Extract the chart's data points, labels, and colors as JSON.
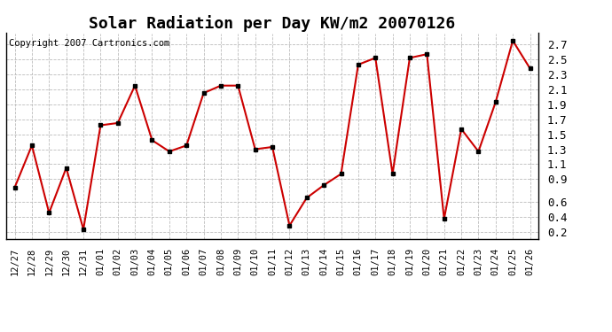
{
  "title": "Solar Radiation per Day KW/m2 20070126",
  "copyright": "Copyright 2007 Cartronics.com",
  "dates": [
    "12/27",
    "12/28",
    "12/29",
    "12/30",
    "12/31",
    "01/01",
    "01/02",
    "01/03",
    "01/04",
    "01/05",
    "01/06",
    "01/07",
    "01/08",
    "01/09",
    "01/10",
    "01/11",
    "01/12",
    "01/13",
    "01/14",
    "01/15",
    "01/16",
    "01/17",
    "01/18",
    "01/19",
    "01/20",
    "01/21",
    "01/22",
    "01/23",
    "01/24",
    "01/25",
    "01/26"
  ],
  "values": [
    0.79,
    1.35,
    0.45,
    1.05,
    0.23,
    1.62,
    1.65,
    2.15,
    1.42,
    1.27,
    1.35,
    2.05,
    2.15,
    2.15,
    1.3,
    1.33,
    0.28,
    0.65,
    0.82,
    0.97,
    2.43,
    2.52,
    0.97,
    2.52,
    2.57,
    0.37,
    1.57,
    1.27,
    1.93,
    2.75,
    2.38
  ],
  "ylim": [
    0.1,
    2.85
  ],
  "yticks": [
    0.2,
    0.4,
    0.6,
    0.9,
    1.1,
    1.3,
    1.5,
    1.7,
    1.9,
    2.1,
    2.3,
    2.5,
    2.7
  ],
  "line_color": "#cc0000",
  "marker_color": "#000000",
  "bg_color": "#ffffff",
  "grid_color": "#bbbbbb",
  "title_fontsize": 13,
  "copyright_fontsize": 7.5
}
